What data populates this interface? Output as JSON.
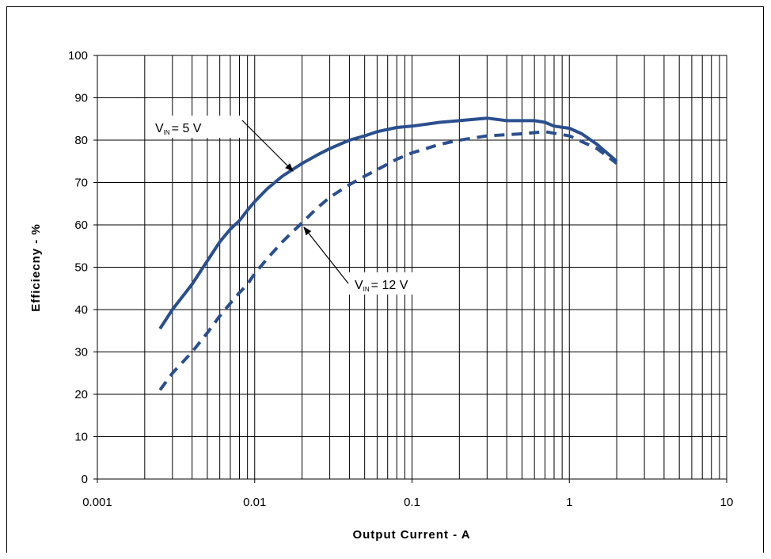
{
  "chart_data": {
    "type": "line",
    "title": "",
    "xlabel": "Output Current - A",
    "ylabel": "Efficiecny - %",
    "xscale": "log",
    "xlim": [
      0.001,
      10
    ],
    "ylim": [
      0,
      100
    ],
    "grid": true,
    "xticks": [
      "0.001",
      "0.01",
      "0.1",
      "1",
      "10"
    ],
    "yticks": [
      "0",
      "10",
      "20",
      "30",
      "40",
      "50",
      "60",
      "70",
      "80",
      "90",
      "100"
    ],
    "series": [
      {
        "label_main": "V",
        "label_sub": "IN",
        "label_rest": "= 5 V",
        "style": "solid",
        "color": "#2a4f8f",
        "x": [
          0.0025,
          0.003,
          0.004,
          0.005,
          0.006,
          0.007,
          0.008,
          0.009,
          0.01,
          0.012,
          0.015,
          0.02,
          0.025,
          0.03,
          0.04,
          0.05,
          0.06,
          0.08,
          0.1,
          0.15,
          0.2,
          0.3,
          0.4,
          0.5,
          0.6,
          0.7,
          0.8,
          1.0,
          1.2,
          1.5,
          2.0
        ],
        "y": [
          35.5,
          40,
          46,
          51.5,
          56,
          59,
          61,
          63.5,
          65.5,
          68.5,
          71.5,
          74.5,
          76.5,
          78,
          80,
          81,
          82,
          83,
          83.3,
          84.2,
          84.6,
          85.2,
          84.6,
          84.6,
          84.6,
          84.2,
          83.3,
          82.8,
          81.5,
          79,
          75
        ]
      },
      {
        "label_main": "V",
        "label_sub": "IN",
        "label_rest": "= 12 V",
        "style": "dashed",
        "color": "#2a4f8f",
        "x": [
          0.0025,
          0.003,
          0.004,
          0.005,
          0.006,
          0.007,
          0.008,
          0.009,
          0.01,
          0.012,
          0.015,
          0.02,
          0.025,
          0.03,
          0.04,
          0.05,
          0.06,
          0.08,
          0.1,
          0.15,
          0.2,
          0.3,
          0.5,
          0.7,
          1.0,
          1.5,
          2.0
        ],
        "y": [
          21,
          25,
          30,
          34.5,
          38.5,
          41.5,
          44,
          46,
          48.5,
          52,
          56,
          60.5,
          64,
          66.5,
          69.5,
          71.5,
          73,
          75.5,
          77,
          79,
          80,
          81,
          81.5,
          82,
          81,
          78,
          74.5
        ]
      }
    ]
  }
}
